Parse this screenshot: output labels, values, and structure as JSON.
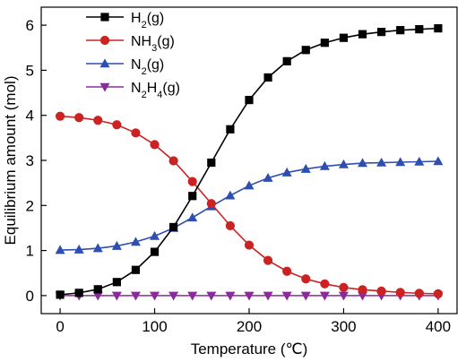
{
  "chart_data": {
    "type": "line",
    "xlabel": "Temperature (℃)",
    "ylabel": "Equilibrium amount (mol)",
    "xlim": [
      -20,
      420
    ],
    "ylim": [
      -0.4,
      6.4
    ],
    "xticks": [
      0,
      100,
      200,
      300,
      400
    ],
    "yticks": [
      0,
      1,
      2,
      3,
      4,
      5,
      6
    ],
    "grid": false,
    "legend_position": "top-left",
    "x": [
      0,
      20,
      40,
      60,
      80,
      100,
      120,
      140,
      160,
      180,
      200,
      220,
      240,
      260,
      280,
      300,
      320,
      340,
      360,
      380,
      400
    ],
    "series": [
      {
        "name": "H2(g)",
        "legend": {
          "base": "H",
          "sub": "2",
          "suffix": "(g)"
        },
        "color": "#000000",
        "marker": "square",
        "values": [
          0.02,
          0.06,
          0.14,
          0.3,
          0.57,
          0.97,
          1.52,
          2.21,
          2.95,
          3.69,
          4.34,
          4.84,
          5.2,
          5.45,
          5.61,
          5.72,
          5.8,
          5.85,
          5.89,
          5.91,
          5.93
        ]
      },
      {
        "name": "NH3(g)",
        "legend": {
          "base": "NH",
          "sub": "3",
          "suffix": "(g)"
        },
        "color": "#cc2222",
        "marker": "circle",
        "values": [
          3.98,
          3.95,
          3.89,
          3.79,
          3.61,
          3.35,
          2.99,
          2.53,
          2.04,
          1.55,
          1.12,
          0.78,
          0.54,
          0.37,
          0.26,
          0.18,
          0.13,
          0.1,
          0.07,
          0.05,
          0.04
        ]
      },
      {
        "name": "N2(g)",
        "legend": {
          "base": "N",
          "sub": "2",
          "suffix": "(g)"
        },
        "color": "#2f4fb0",
        "marker": "triangle-up",
        "values": [
          1.01,
          1.02,
          1.05,
          1.1,
          1.19,
          1.32,
          1.5,
          1.73,
          1.98,
          2.22,
          2.44,
          2.61,
          2.73,
          2.81,
          2.87,
          2.91,
          2.94,
          2.95,
          2.96,
          2.97,
          2.98
        ]
      },
      {
        "name": "N2H4(g)",
        "legend": {
          "base": "N",
          "sub": "2",
          "mid": "H",
          "sub2": "4",
          "suffix": "(g)"
        },
        "color": "#8a2b9b",
        "marker": "triangle-down",
        "values": [
          0,
          0,
          0,
          0,
          0,
          0,
          0,
          0,
          0,
          0,
          0,
          0,
          0,
          0,
          0,
          0,
          0,
          0,
          0,
          0,
          0
        ]
      }
    ]
  }
}
